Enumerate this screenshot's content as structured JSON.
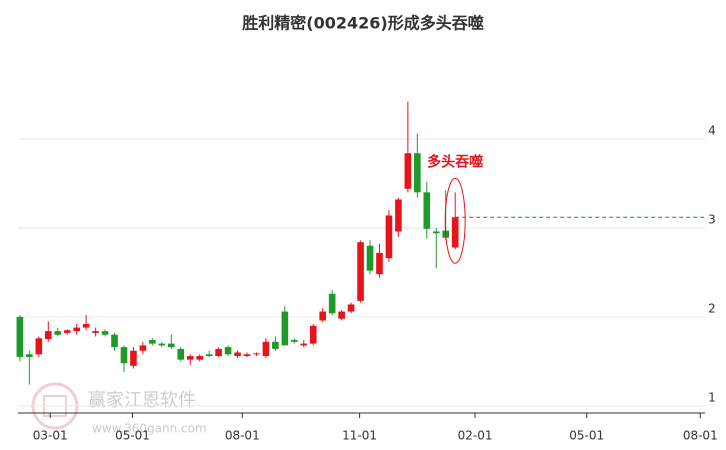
{
  "chart_data": {
    "type": "candlestick",
    "title": "胜利精密(002426)形成多头吞噬",
    "annotation": "多头吞噬",
    "watermark": [
      "赢家江恩软件",
      "www.360gann.com"
    ],
    "up_color": "#e8141c",
    "down_color": "#1f9a2a",
    "categories": [
      null,
      null,
      null,
      null,
      null,
      null,
      null,
      null,
      null,
      null,
      null,
      null,
      null,
      null,
      null,
      null,
      null,
      null,
      null,
      null,
      null,
      null,
      null,
      null,
      null,
      null,
      null,
      null,
      null,
      null,
      null,
      null,
      null,
      null,
      null,
      null,
      null,
      null,
      null,
      null,
      null,
      null,
      null,
      null,
      null,
      null,
      null
    ],
    "open": [
      2.0,
      1.58,
      1.58,
      1.75,
      1.84,
      1.82,
      1.84,
      1.88,
      1.82,
      1.84,
      1.8,
      1.66,
      1.45,
      1.62,
      1.74,
      1.7,
      1.7,
      1.64,
      1.52,
      1.52,
      1.58,
      1.56,
      1.66,
      1.56,
      1.56,
      1.58,
      1.56,
      1.72,
      2.06,
      1.74,
      1.68,
      1.7,
      1.96,
      2.26,
      1.98,
      2.06,
      2.18,
      2.8,
      2.48,
      2.66,
      2.96,
      3.44,
      3.84,
      3.4,
      2.96,
      2.97,
      2.78
    ],
    "high": [
      2.02,
      1.62,
      1.78,
      1.95,
      1.88,
      1.86,
      1.92,
      2.02,
      1.88,
      1.86,
      1.82,
      1.68,
      1.66,
      1.72,
      1.76,
      1.72,
      1.8,
      1.66,
      1.58,
      1.58,
      1.62,
      1.66,
      1.68,
      1.62,
      1.6,
      1.6,
      1.76,
      1.78,
      2.12,
      1.76,
      1.74,
      1.92,
      2.1,
      2.3,
      2.08,
      2.16,
      2.86,
      2.86,
      2.82,
      3.2,
      3.34,
      4.42,
      4.06,
      3.52,
      3.0,
      3.42,
      3.4
    ],
    "low": [
      1.5,
      1.24,
      1.55,
      1.72,
      1.78,
      1.8,
      1.8,
      1.85,
      1.78,
      1.78,
      1.62,
      1.38,
      1.42,
      1.58,
      1.68,
      1.66,
      1.64,
      1.5,
      1.46,
      1.5,
      1.55,
      1.55,
      1.56,
      1.54,
      1.55,
      1.56,
      1.54,
      1.62,
      1.68,
      1.7,
      1.66,
      1.68,
      1.94,
      2.02,
      1.96,
      2.04,
      2.16,
      2.48,
      2.44,
      2.62,
      2.9,
      3.4,
      3.34,
      2.88,
      2.55,
      2.86,
      2.76
    ],
    "close": [
      1.55,
      1.55,
      1.76,
      1.84,
      1.8,
      1.85,
      1.88,
      1.92,
      1.84,
      1.8,
      1.66,
      1.48,
      1.62,
      1.68,
      1.7,
      1.68,
      1.66,
      1.52,
      1.56,
      1.56,
      1.56,
      1.64,
      1.58,
      1.6,
      1.58,
      1.59,
      1.72,
      1.64,
      1.68,
      1.72,
      1.7,
      1.9,
      2.06,
      2.04,
      2.06,
      2.14,
      2.84,
      2.52,
      2.72,
      3.14,
      3.32,
      3.84,
      3.4,
      2.99,
      2.94,
      2.89,
      3.12
    ],
    "xlim": [
      -0.2,
      72.4
    ],
    "xticks": [
      {
        "value": 3.2,
        "label": "03-01"
      },
      {
        "value": 11.9,
        "label": "05-01"
      },
      {
        "value": 23.5,
        "label": "08-01"
      },
      {
        "value": 35.9,
        "label": "11-01"
      },
      {
        "value": 48.1,
        "label": "02-01"
      },
      {
        "value": 59.9,
        "label": "05-01"
      },
      {
        "value": 71.9,
        "label": "08-01"
      }
    ],
    "ylim": [
      0.92,
      5.0
    ],
    "yticks": [
      1,
      2,
      3,
      4
    ],
    "grid": true
  }
}
